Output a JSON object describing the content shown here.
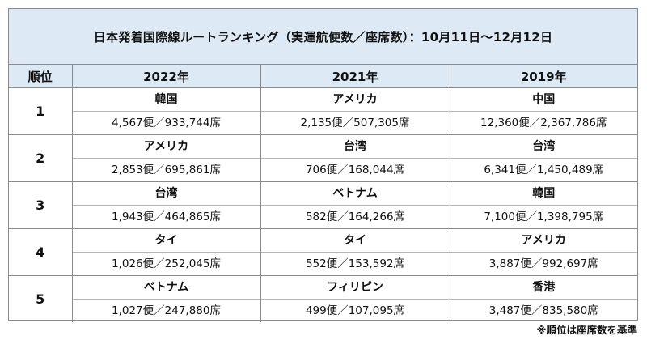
{
  "title": "日本発着国際線ルートランキング（実運航便数／座席数）：10月11日〜12月12日",
  "headers": {
    "rank": "順位",
    "years": [
      "2022年",
      "2021年",
      "2019年"
    ]
  },
  "rows": [
    {
      "rank": "1",
      "cells": [
        {
          "country": "韓国",
          "stats": "4,567便／933,744席"
        },
        {
          "country": "アメリカ",
          "stats": "2,135便／507,305席"
        },
        {
          "country": "中国",
          "stats": "12,360便／2,367,786席"
        }
      ]
    },
    {
      "rank": "2",
      "cells": [
        {
          "country": "アメリカ",
          "stats": "2,853便／695,861席"
        },
        {
          "country": "台湾",
          "stats": "706便／168,044席"
        },
        {
          "country": "台湾",
          "stats": "6,341便／1,450,489席"
        }
      ]
    },
    {
      "rank": "3",
      "cells": [
        {
          "country": "台湾",
          "stats": "1,943便／464,865席"
        },
        {
          "country": "ベトナム",
          "stats": "582便／164,266席"
        },
        {
          "country": "韓国",
          "stats": "7,100便／1,398,795席"
        }
      ]
    },
    {
      "rank": "4",
      "cells": [
        {
          "country": "タイ",
          "stats": "1,026便／252,045席"
        },
        {
          "country": "タイ",
          "stats": "552便／153,592席"
        },
        {
          "country": "アメリカ",
          "stats": "3,887便／992,697席"
        }
      ]
    },
    {
      "rank": "5",
      "cells": [
        {
          "country": "ベトナム",
          "stats": "1,027便／247,880席"
        },
        {
          "country": "フィリピン",
          "stats": "499便／107,095席"
        },
        {
          "country": "香港",
          "stats": "3,487便／835,580席"
        }
      ]
    }
  ],
  "footnote": "※順位は座席数を基準"
}
